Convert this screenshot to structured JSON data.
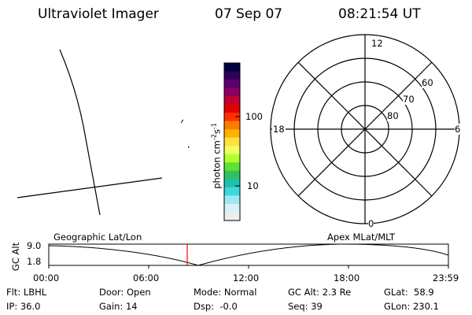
{
  "header": {
    "title": "Ultraviolet Imager",
    "date": "07 Sep 07",
    "time": "08:21:54 UT"
  },
  "colorbar": {
    "label": "photon cm-2s-1",
    "label_parts": {
      "base": "photon cm",
      "exp1": "-2",
      "mid": "s",
      "exp2": "-1"
    },
    "ticks": [
      "100",
      "10"
    ],
    "colors": [
      "#000040",
      "#30005a",
      "#5a0070",
      "#8a0060",
      "#c00030",
      "#e00000",
      "#ff3000",
      "#ff7a00",
      "#ffb000",
      "#ffe040",
      "#f0ff60",
      "#b0ff30",
      "#60e030",
      "#30c060",
      "#20c0b0",
      "#40d8e0",
      "#a0e8f0",
      "#d8f0f8",
      "#eeeeee"
    ]
  },
  "polar": {
    "rings": [
      "80",
      "70",
      "60"
    ],
    "mlt": [
      "12",
      "6",
      "0",
      "18"
    ]
  },
  "timeline": {
    "left_label": "Geographic Lat/Lon",
    "right_label": "Apex MLat/MLT",
    "axis_title": "GC Alt",
    "y_ticks": [
      "9.0",
      "1.8"
    ],
    "x_ticks": [
      "00:00",
      "06:00",
      "12:00",
      "18:00",
      "23:59"
    ],
    "current_color": "#ff0000"
  },
  "status": {
    "filter": "Flt: LBHL",
    "ip": "IP: 36.0",
    "door": "Door: Open",
    "gain": "Gain: 14",
    "mode": "Mode: Normal",
    "dsp": "Dsp:  -0.0",
    "gcalt": "GC Alt: 2.3 Re",
    "seq": "Seq: 39",
    "glat": "GLat:  58.9",
    "glon": "GLon: 230.1"
  }
}
